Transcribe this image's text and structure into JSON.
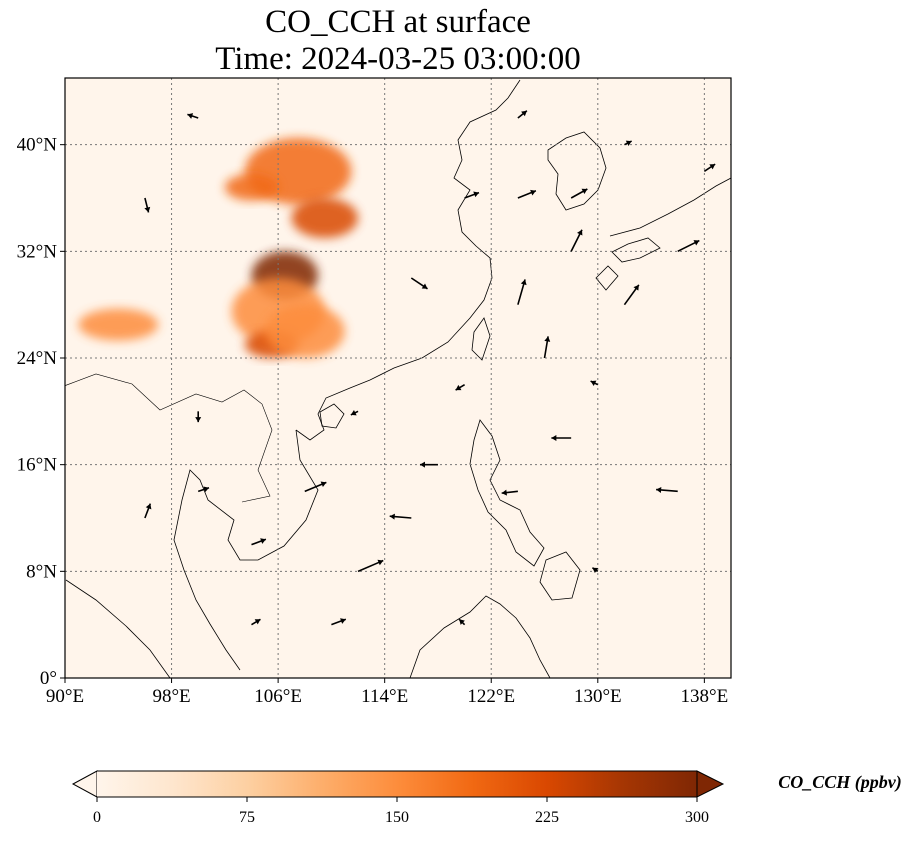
{
  "title": {
    "line1": "CO_CCH at surface",
    "line2": "Time: 2024-03-25 03:00:00"
  },
  "map": {
    "extent": {
      "lon": [
        90,
        140
      ],
      "lat": [
        0,
        45
      ]
    },
    "lon_ticks": [
      {
        "value": 90,
        "label": "90°E"
      },
      {
        "value": 98,
        "label": "98°E"
      },
      {
        "value": 106,
        "label": "106°E"
      },
      {
        "value": 114,
        "label": "114°E"
      },
      {
        "value": 122,
        "label": "122°E"
      },
      {
        "value": 130,
        "label": "130°E"
      },
      {
        "value": 138,
        "label": "138°E"
      }
    ],
    "lat_ticks": [
      {
        "value": 0,
        "label": "0°"
      },
      {
        "value": 8,
        "label": "8°N"
      },
      {
        "value": 16,
        "label": "16°N"
      },
      {
        "value": 24,
        "label": "24°N"
      },
      {
        "value": 32,
        "label": "32°N"
      },
      {
        "value": 40,
        "label": "40°N"
      }
    ],
    "gridlines": true,
    "background_color": "#fff5eb",
    "coastline_color": "#000000"
  },
  "colorbar": {
    "label": "CO_CCH (ppbv)",
    "ticks": [
      {
        "value": 0,
        "label": "0"
      },
      {
        "value": 75,
        "label": "75"
      },
      {
        "value": 150,
        "label": "150"
      },
      {
        "value": 225,
        "label": "225"
      },
      {
        "value": 300,
        "label": "300"
      }
    ],
    "range": [
      0,
      300
    ],
    "extend": "both",
    "colormap": [
      "#fff5eb",
      "#fee6ce",
      "#fdd0a2",
      "#fdae6b",
      "#fd8d3c",
      "#f16913",
      "#d94801",
      "#a63603",
      "#7f2704"
    ]
  },
  "chart_data": {
    "type": "heatmap",
    "field": "CO_CCH",
    "units": "ppbv",
    "plumes": [
      {
        "lon": 107.5,
        "lat": 38.0,
        "rlon": 4.0,
        "rlat": 2.5,
        "value": 200
      },
      {
        "lon": 104.0,
        "lat": 36.8,
        "rlon": 2.0,
        "rlat": 1.0,
        "value": 180
      },
      {
        "lon": 109.5,
        "lat": 34.5,
        "rlon": 2.5,
        "rlat": 1.5,
        "value": 230
      },
      {
        "lon": 106.5,
        "lat": 30.2,
        "rlon": 2.5,
        "rlat": 1.8,
        "value": 300
      },
      {
        "lon": 106.0,
        "lat": 27.5,
        "rlon": 3.5,
        "rlat": 2.5,
        "value": 160
      },
      {
        "lon": 105.5,
        "lat": 25.0,
        "rlon": 2.0,
        "rlat": 1.0,
        "value": 230
      },
      {
        "lon": 108.0,
        "lat": 26.0,
        "rlon": 3.0,
        "rlat": 2.0,
        "value": 140
      },
      {
        "lon": 94.0,
        "lat": 26.5,
        "rlon": 3.0,
        "rlat": 1.2,
        "value": 150
      }
    ],
    "wind_vectors": [
      {
        "lon": 96,
        "lat": 12,
        "u": 0.3,
        "v": 0.8
      },
      {
        "lon": 100,
        "lat": 14,
        "u": 0.6,
        "v": 0.2
      },
      {
        "lon": 104,
        "lat": 10,
        "u": 0.8,
        "v": 0.3
      },
      {
        "lon": 108,
        "lat": 14,
        "u": 1.2,
        "v": 0.5
      },
      {
        "lon": 112,
        "lat": 8,
        "u": 1.4,
        "v": 0.6
      },
      {
        "lon": 116,
        "lat": 12,
        "u": -1.2,
        "v": 0.1
      },
      {
        "lon": 118,
        "lat": 16,
        "u": -1.0,
        "v": 0.0
      },
      {
        "lon": 124,
        "lat": 14,
        "u": -0.9,
        "v": -0.1
      },
      {
        "lon": 128,
        "lat": 18,
        "u": -1.1,
        "v": 0.0
      },
      {
        "lon": 136,
        "lat": 14,
        "u": -1.2,
        "v": 0.1
      },
      {
        "lon": 126,
        "lat": 24,
        "u": 0.2,
        "v": 1.2
      },
      {
        "lon": 124,
        "lat": 28,
        "u": 0.4,
        "v": 1.4
      },
      {
        "lon": 128,
        "lat": 32,
        "u": 0.6,
        "v": 1.2
      },
      {
        "lon": 132,
        "lat": 28,
        "u": 0.8,
        "v": 1.1
      },
      {
        "lon": 136,
        "lat": 32,
        "u": 1.2,
        "v": 0.6
      },
      {
        "lon": 120,
        "lat": 36,
        "u": 0.8,
        "v": 0.3
      },
      {
        "lon": 116,
        "lat": 30,
        "u": 0.9,
        "v": -0.6
      },
      {
        "lon": 112,
        "lat": 20,
        "u": -0.4,
        "v": -0.2
      },
      {
        "lon": 100,
        "lat": 20,
        "u": 0.0,
        "v": -0.6
      },
      {
        "lon": 96,
        "lat": 36,
        "u": 0.2,
        "v": -0.8
      },
      {
        "lon": 100,
        "lat": 42,
        "u": -0.6,
        "v": 0.2
      },
      {
        "lon": 124,
        "lat": 42,
        "u": 0.5,
        "v": 0.4
      },
      {
        "lon": 132,
        "lat": 40,
        "u": 0.4,
        "v": 0.2
      },
      {
        "lon": 138,
        "lat": 38,
        "u": 0.6,
        "v": 0.4
      },
      {
        "lon": 130,
        "lat": 8,
        "u": -0.3,
        "v": 0.2
      },
      {
        "lon": 104,
        "lat": 4,
        "u": 0.5,
        "v": 0.3
      },
      {
        "lon": 110,
        "lat": 4,
        "u": 0.8,
        "v": 0.3
      },
      {
        "lon": 120,
        "lat": 4,
        "u": -0.3,
        "v": 0.3
      },
      {
        "lon": 120,
        "lat": 22,
        "u": -0.5,
        "v": -0.3
      },
      {
        "lon": 130,
        "lat": 22,
        "u": -0.4,
        "v": 0.2
      },
      {
        "lon": 124,
        "lat": 36,
        "u": 1.0,
        "v": 0.4
      },
      {
        "lon": 128,
        "lat": 36,
        "u": 0.9,
        "v": 0.5
      }
    ]
  }
}
